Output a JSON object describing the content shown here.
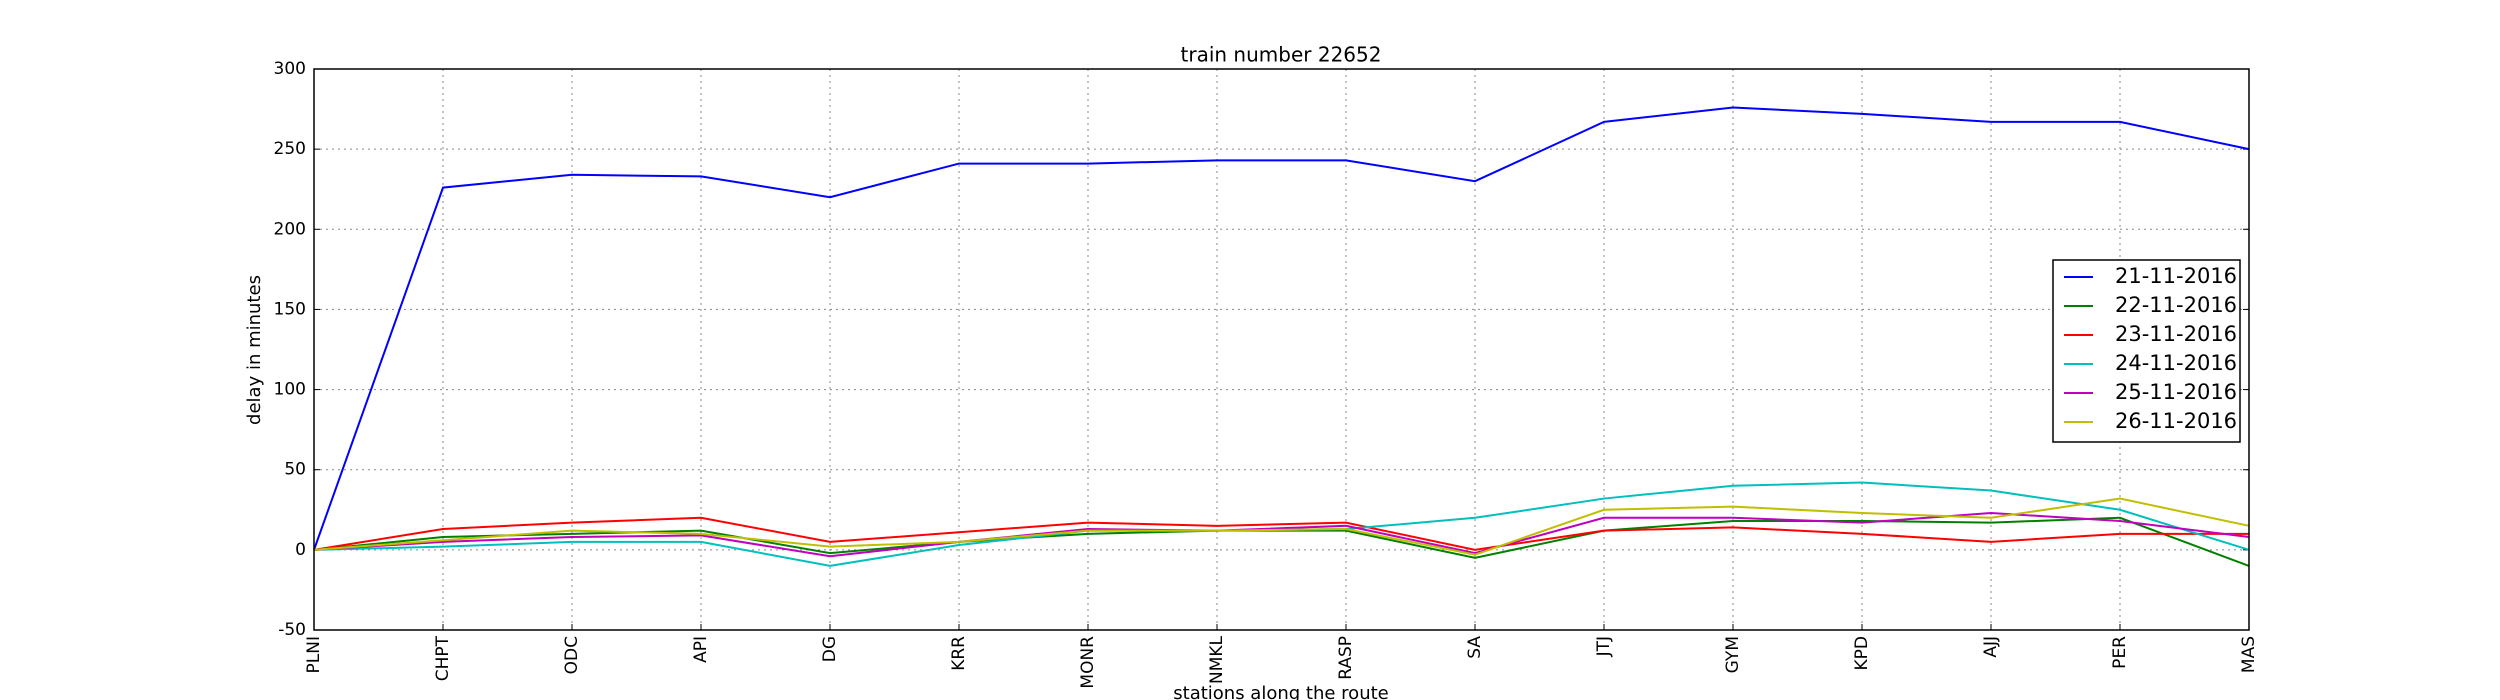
{
  "chart_data": {
    "type": "line",
    "title": "train number 22652",
    "xlabel": "stations along the route",
    "ylabel": "delay in minutes",
    "categories": [
      "PLNI",
      "CHPT",
      "ODC",
      "API",
      "DG",
      "KRR",
      "MONR",
      "NMKL",
      "RASP",
      "SA",
      "JTJ",
      "GYM",
      "KPD",
      "AJJ",
      "PER",
      "MAS"
    ],
    "series": [
      {
        "name": "21-11-2016",
        "color": "#0000ff",
        "values": [
          0,
          226,
          234,
          233,
          220,
          241,
          241,
          243,
          243,
          230,
          267,
          276,
          272,
          267,
          267,
          250
        ]
      },
      {
        "name": "22-11-2016",
        "color": "#008000",
        "values": [
          0,
          8,
          10,
          12,
          -2,
          5,
          10,
          12,
          12,
          -5,
          12,
          18,
          18,
          17,
          20,
          -10
        ]
      },
      {
        "name": "23-11-2016",
        "color": "#ff0000",
        "values": [
          0,
          13,
          17,
          20,
          5,
          11,
          17,
          15,
          17,
          0,
          12,
          14,
          10,
          5,
          10,
          10
        ]
      },
      {
        "name": "24-11-2016",
        "color": "#00bfbf",
        "values": [
          0,
          2,
          5,
          5,
          -10,
          3,
          12,
          12,
          13,
          20,
          32,
          40,
          42,
          37,
          25,
          0
        ]
      },
      {
        "name": "25-11-2016",
        "color": "#bf00bf",
        "values": [
          0,
          5,
          8,
          9,
          -4,
          5,
          13,
          12,
          15,
          -2,
          20,
          20,
          17,
          23,
          18,
          8
        ]
      },
      {
        "name": "26-11-2016",
        "color": "#bfbf00",
        "values": [
          0,
          6,
          12,
          10,
          2,
          5,
          12,
          12,
          13,
          -3,
          25,
          27,
          23,
          20,
          32,
          15
        ]
      }
    ],
    "ylim": [
      -50,
      300
    ],
    "yticks": [
      -50,
      0,
      50,
      100,
      150,
      200,
      250,
      300
    ],
    "grid": true,
    "legend": "right"
  }
}
